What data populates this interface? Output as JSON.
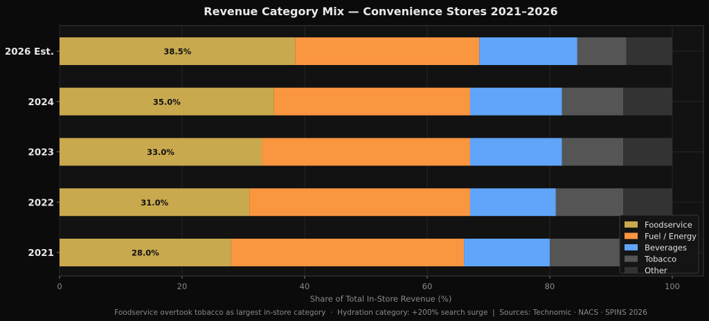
{
  "chart_data": {
    "type": "bar",
    "orientation": "horizontal",
    "stacked": true,
    "title": "Revenue Category Mix — Convenience Stores 2021–2026",
    "xlabel": "Share of Total In-Store Revenue (%)",
    "ylabel": "",
    "xlim": [
      0,
      100
    ],
    "xticks": [
      0,
      20,
      40,
      60,
      80,
      100
    ],
    "grid": true,
    "legend_position": "lower-right",
    "categories": [
      "2026 Est.",
      "2024",
      "2023",
      "2022",
      "2021"
    ],
    "series": [
      {
        "name": "Foodservice",
        "color": "#c9a94e",
        "values": [
          38.5,
          35.0,
          33.0,
          31.0,
          28.0
        ],
        "labels": [
          "38.5%",
          "35.0%",
          "33.0%",
          "31.0%",
          "28.0%"
        ]
      },
      {
        "name": "Fuel / Energy",
        "color": "#fb9640",
        "values": [
          30.0,
          32.0,
          34.0,
          36.0,
          38.0
        ]
      },
      {
        "name": "Beverages",
        "color": "#60a5fa",
        "values": [
          16.0,
          15.0,
          15.0,
          14.0,
          14.0
        ]
      },
      {
        "name": "Tobacco",
        "color": "#555555",
        "values": [
          8.0,
          10.0,
          10.0,
          11.0,
          12.0
        ]
      },
      {
        "name": "Other",
        "color": "#333333",
        "values": [
          7.5,
          8.0,
          8.0,
          8.0,
          8.0
        ]
      }
    ],
    "footnote": "Foodservice overtook tobacco as largest in-store category  ·  Hydration category: +200% search surge  |  Sources: Technomic · NACS · SPINS 2026"
  }
}
